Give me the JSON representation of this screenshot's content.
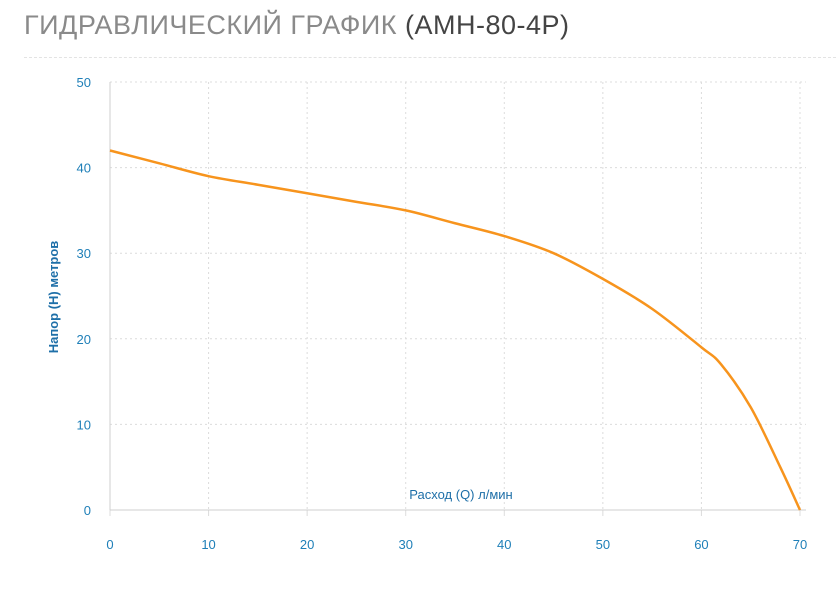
{
  "title": {
    "main": "ГИДРАВЛИЧЕСКИЙ ГРАФИК",
    "model": "(АМН-80-4Р)"
  },
  "chart_data": {
    "type": "line",
    "title": "ГИДРАВЛИЧЕСКИЙ ГРАФИК (АМН-80-4Р)",
    "xlabel": "Расход (Q) л/мин",
    "ylabel": "Напор (Н) метров",
    "xlim": [
      0,
      70
    ],
    "ylim": [
      0,
      50
    ],
    "x_ticks": [
      "0",
      "10",
      "20",
      "30",
      "40",
      "50",
      "60",
      "70"
    ],
    "y_ticks": [
      "0",
      "10",
      "20",
      "30",
      "40",
      "50"
    ],
    "grid": true,
    "colors": {
      "line": "#f7941d",
      "grid": "#dcdcdc",
      "ticks": "#1e7fb8"
    },
    "series": [
      {
        "x": [
          0,
          5,
          10,
          15,
          20,
          25,
          30,
          35,
          40,
          45,
          50,
          55,
          60,
          62,
          65,
          68,
          70
        ],
        "y": [
          42,
          40.5,
          39,
          38,
          37,
          36,
          35,
          33.5,
          32,
          30,
          27,
          23.5,
          19,
          17,
          12,
          5,
          0
        ]
      }
    ]
  }
}
